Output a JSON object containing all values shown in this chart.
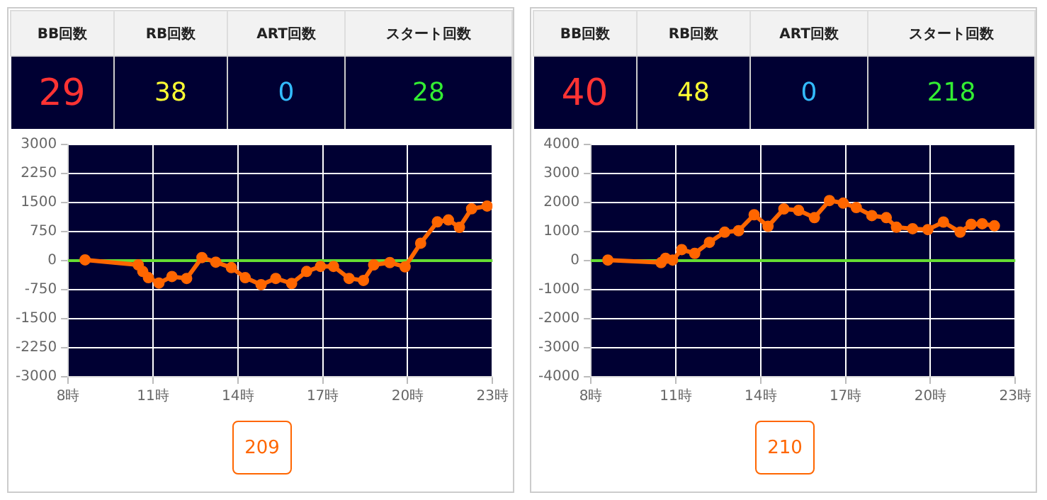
{
  "chart_data": [
    {
      "type": "other",
      "annotations": [
        "BB回数",
        "RB回数",
        "ART回数",
        "スタート回数",
        "29",
        "38",
        "0",
        "28"
      ]
    },
    {
      "type": "line",
      "x": [
        8.6,
        10.48,
        10.64,
        10.84,
        11.21,
        11.67,
        12.19,
        12.73,
        13.22,
        13.77,
        14.26,
        14.82,
        15.34,
        15.9,
        16.43,
        16.92,
        17.38,
        17.93,
        18.44,
        18.8,
        19.37,
        19.91,
        20.46,
        21.05,
        21.44,
        21.83,
        22.26,
        22.81
      ],
      "series": [
        {
          "color": "#ff6600",
          "values": [
            20,
            -110,
            -280,
            -440,
            -580,
            -410,
            -460,
            80,
            -40,
            -180,
            -440,
            -620,
            -460,
            -590,
            -280,
            -150,
            -150,
            -460,
            -510,
            -110,
            -50,
            -160,
            450,
            1000,
            1050,
            860,
            1340,
            1410
          ]
        }
      ],
      "xlim": [
        8,
        23
      ],
      "xticks": [
        {
          "value": 8,
          "label": "8時"
        },
        {
          "value": 11,
          "label": "11時"
        },
        {
          "value": 14,
          "label": "14時"
        },
        {
          "value": 17,
          "label": "17時"
        },
        {
          "value": 20,
          "label": "20時"
        },
        {
          "value": 23,
          "label": "23時"
        }
      ],
      "ylim": [
        -3000,
        3000
      ],
      "yticks": [
        -3000,
        -2250,
        -1500,
        -750,
        0,
        750,
        1500,
        2250,
        3000
      ],
      "ref_lines": [
        {
          "axis": "y",
          "value": 0,
          "color": "#66dd33"
        }
      ],
      "grid": true,
      "marker": "circle",
      "line_style": "solid",
      "annotations": [
        "209"
      ]
    },
    {
      "type": "other",
      "annotations": [
        "BB回数",
        "RB回数",
        "ART回数",
        "スタート回数",
        "40",
        "48",
        "0",
        "218"
      ]
    },
    {
      "type": "line",
      "x": [
        8.6,
        10.48,
        10.64,
        10.89,
        11.21,
        11.67,
        12.19,
        12.73,
        13.22,
        13.77,
        14.26,
        14.82,
        15.34,
        15.9,
        16.43,
        16.92,
        17.38,
        17.93,
        18.44,
        18.8,
        19.37,
        19.91,
        20.46,
        21.05,
        21.44,
        21.83,
        22.26
      ],
      "series": [
        {
          "color": "#ff6600",
          "values": [
            20,
            -70,
            80,
            20,
            380,
            250,
            630,
            980,
            1030,
            1580,
            1180,
            1780,
            1730,
            1480,
            2070,
            1980,
            1830,
            1550,
            1480,
            1150,
            1100,
            1070,
            1330,
            980,
            1250,
            1270,
            1200
          ]
        }
      ],
      "xlim": [
        8,
        23
      ],
      "xticks": [
        {
          "value": 8,
          "label": "8時"
        },
        {
          "value": 11,
          "label": "11時"
        },
        {
          "value": 14,
          "label": "14時"
        },
        {
          "value": 17,
          "label": "17時"
        },
        {
          "value": 20,
          "label": "20時"
        },
        {
          "value": 23,
          "label": "23時"
        }
      ],
      "ylim": [
        -4000,
        4000
      ],
      "yticks": [
        -4000,
        -3000,
        -2000,
        -1000,
        0,
        1000,
        2000,
        3000,
        4000
      ],
      "ref_lines": [
        {
          "axis": "y",
          "value": 0,
          "color": "#66dd33"
        }
      ],
      "grid": true,
      "marker": "circle",
      "line_style": "solid",
      "annotations": [
        "210"
      ]
    }
  ]
}
